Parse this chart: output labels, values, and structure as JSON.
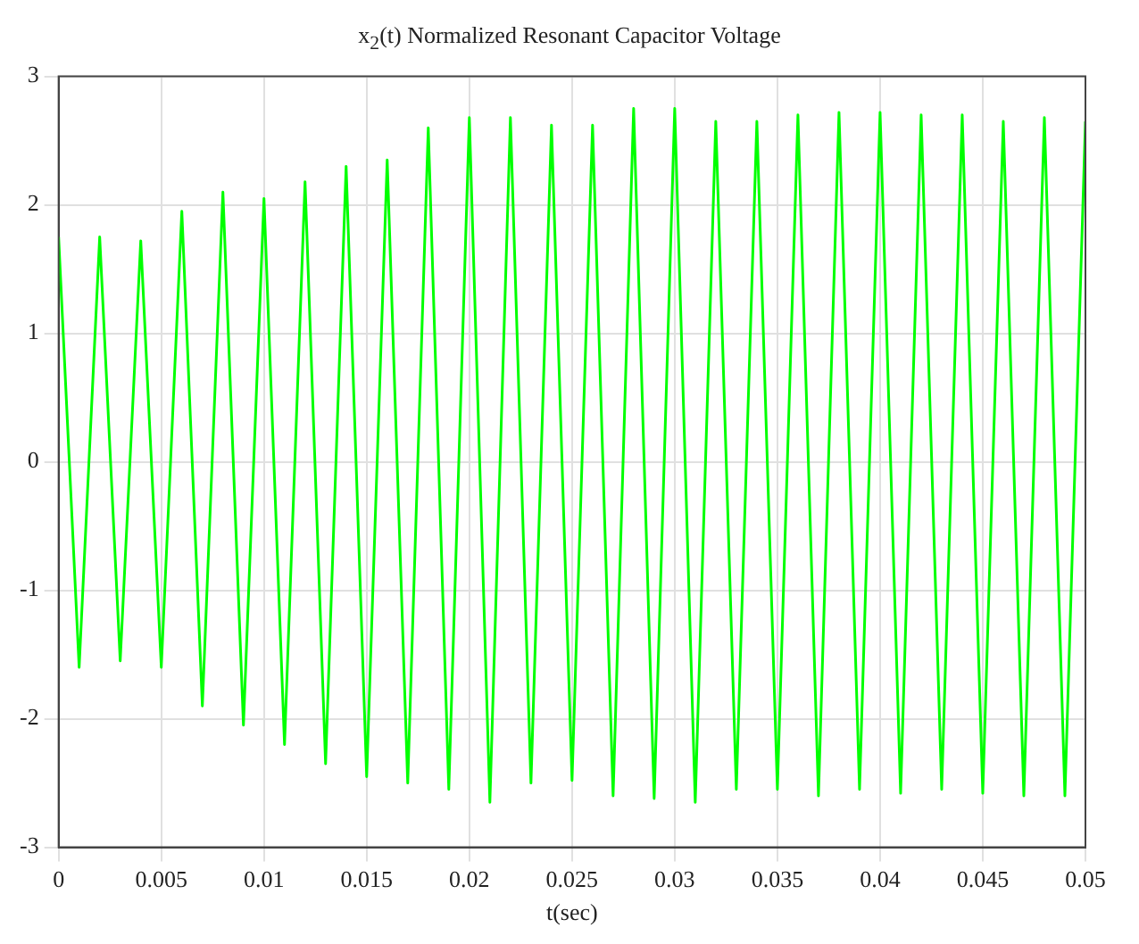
{
  "chart_data": {
    "type": "line",
    "title": "x$_{2}$(t) Normalized Resonant Capacitor Voltage",
    "xlabel": "t(sec)",
    "xlim": [
      0,
      0.05
    ],
    "xticks": [
      0,
      0.005,
      0.01,
      0.015,
      0.02,
      0.025,
      0.03,
      0.035,
      0.04,
      0.045,
      0.05
    ],
    "ylim": [
      -3,
      3
    ],
    "yticks": [
      -3,
      -2,
      -1,
      0,
      1,
      2,
      3
    ],
    "grid": true,
    "legend": false,
    "marker": "none",
    "line_style": "solid",
    "series": [
      {
        "color": "#00ff00",
        "x": [
          0,
          0.001,
          0.002,
          0.003,
          0.004,
          0.005,
          0.006,
          0.007,
          0.008,
          0.009,
          0.01,
          0.011,
          0.012,
          0.013,
          0.014,
          0.015,
          0.016,
          0.017,
          0.018,
          0.019,
          0.02,
          0.021,
          0.022,
          0.023,
          0.024,
          0.025,
          0.026,
          0.027,
          0.028,
          0.029,
          0.03,
          0.031,
          0.032,
          0.033,
          0.034,
          0.035,
          0.036,
          0.037,
          0.038,
          0.039,
          0.04,
          0.041,
          0.042,
          0.043,
          0.044,
          0.045,
          0.046,
          0.047,
          0.048,
          0.049,
          0.05
        ],
        "values": [
          1.75,
          -1.6,
          1.75,
          -1.55,
          1.72,
          -1.6,
          1.95,
          -1.9,
          2.1,
          -2.05,
          2.05,
          -2.2,
          2.18,
          -2.35,
          2.3,
          -2.45,
          2.35,
          -2.5,
          2.6,
          -2.55,
          2.68,
          -2.65,
          2.68,
          -2.5,
          2.62,
          -2.48,
          2.62,
          -2.6,
          2.75,
          -2.62,
          2.75,
          -2.65,
          2.65,
          -2.55,
          2.65,
          -2.55,
          2.7,
          -2.6,
          2.72,
          -2.55,
          2.72,
          -2.58,
          2.7,
          -2.55,
          2.7,
          -2.58,
          2.65,
          -2.6,
          2.68,
          -2.6,
          2.65
        ]
      }
    ]
  }
}
